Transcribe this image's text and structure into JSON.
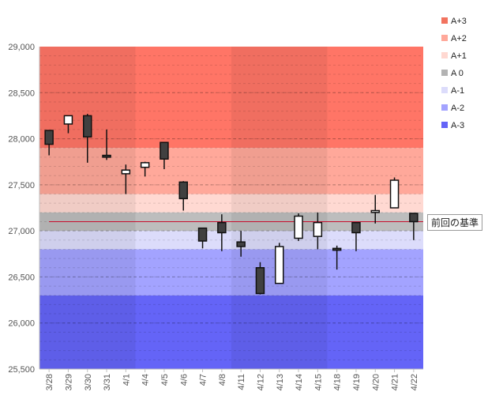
{
  "chart_data": {
    "type": "candlestick",
    "title": "",
    "xlabel": "",
    "ylabel": "",
    "ylim": [
      25500,
      29000
    ],
    "y_ticks": [
      "25,500",
      "26,000",
      "26,500",
      "27,000",
      "27,500",
      "28,000",
      "28,500",
      "29,000"
    ],
    "y_tick_values": [
      25500,
      26000,
      26500,
      27000,
      27500,
      28000,
      28500,
      29000
    ],
    "categories": [
      "3/28",
      "3/29",
      "3/30",
      "3/31",
      "4/1",
      "4/4",
      "4/5",
      "4/6",
      "4/7",
      "4/8",
      "4/11",
      "4/12",
      "4/13",
      "4/14",
      "4/15",
      "4/18",
      "4/19",
      "4/20",
      "4/21",
      "4/22"
    ],
    "candles": [
      {
        "date": "3/28",
        "open": 28090,
        "close": 27940,
        "high": 28090,
        "low": 27820
      },
      {
        "date": "3/29",
        "open": 28160,
        "close": 28250,
        "high": 28250,
        "low": 28060
      },
      {
        "date": "3/30",
        "open": 28250,
        "close": 28020,
        "high": 28270,
        "low": 27740
      },
      {
        "date": "3/31",
        "open": 27820,
        "close": 27800,
        "high": 28100,
        "low": 27770
      },
      {
        "date": "4/1",
        "open": 27620,
        "close": 27660,
        "high": 27720,
        "low": 27400
      },
      {
        "date": "4/4",
        "open": 27690,
        "close": 27740,
        "high": 27750,
        "low": 27590
      },
      {
        "date": "4/5",
        "open": 27960,
        "close": 27780,
        "high": 27960,
        "low": 27670
      },
      {
        "date": "4/6",
        "open": 27530,
        "close": 27350,
        "high": 27540,
        "low": 27220
      },
      {
        "date": "4/7",
        "open": 27030,
        "close": 26890,
        "high": 27030,
        "low": 26810
      },
      {
        "date": "4/8",
        "open": 27090,
        "close": 26980,
        "high": 27180,
        "low": 26780
      },
      {
        "date": "4/11",
        "open": 26880,
        "close": 26830,
        "high": 27000,
        "low": 26720
      },
      {
        "date": "4/12",
        "open": 26600,
        "close": 26320,
        "high": 26660,
        "low": 26310
      },
      {
        "date": "4/13",
        "open": 26430,
        "close": 26830,
        "high": 26870,
        "low": 26430
      },
      {
        "date": "4/14",
        "open": 26920,
        "close": 27160,
        "high": 27190,
        "low": 26890
      },
      {
        "date": "4/15",
        "open": 26940,
        "close": 27090,
        "high": 27200,
        "low": 26800
      },
      {
        "date": "4/18",
        "open": 26810,
        "close": 26790,
        "high": 26840,
        "low": 26580
      },
      {
        "date": "4/19",
        "open": 27090,
        "close": 26980,
        "high": 27090,
        "low": 26780
      },
      {
        "date": "4/20",
        "open": 27200,
        "close": 27220,
        "high": 27390,
        "low": 27080
      },
      {
        "date": "4/21",
        "open": 27250,
        "close": 27550,
        "high": 27580,
        "low": 27250
      },
      {
        "date": "4/22",
        "open": 27190,
        "close": 27100,
        "high": 27190,
        "low": 26900
      }
    ],
    "bands": [
      {
        "name": "A+3",
        "from": 27900,
        "to": 29000,
        "color": "#ff7566"
      },
      {
        "name": "A+2",
        "from": 27400,
        "to": 27900,
        "color": "#ffa89a"
      },
      {
        "name": "A+1",
        "from": 27200,
        "to": 27400,
        "color": "#ffd9d2"
      },
      {
        "name": "A 0",
        "from": 27000,
        "to": 27200,
        "color": "#bdbdbd"
      },
      {
        "name": "A-1",
        "from": 26800,
        "to": 27000,
        "color": "#dcdcfb"
      },
      {
        "name": "A-2",
        "from": 26300,
        "to": 26800,
        "color": "#a3a3ff"
      },
      {
        "name": "A-3",
        "from": 25500,
        "to": 26300,
        "color": "#6464f7"
      }
    ],
    "legend": [
      "A+3",
      "A+2",
      "A+1",
      "A 0",
      "A-1",
      "A-2",
      "A-3"
    ],
    "legend_colors": [
      "#f2735f",
      "#ffa89a",
      "#ffd8d1",
      "#b3b3b3",
      "#dcdcfb",
      "#a3a3ff",
      "#6464f7"
    ],
    "week_groups": [
      [
        0,
        4
      ],
      [
        5,
        9
      ],
      [
        10,
        14
      ],
      [
        15,
        19
      ]
    ],
    "reference_line": {
      "value": 27100,
      "label": "前回の基準",
      "color": "#c8102e"
    },
    "up_color": "#ffffff",
    "down_color": "#404040"
  }
}
